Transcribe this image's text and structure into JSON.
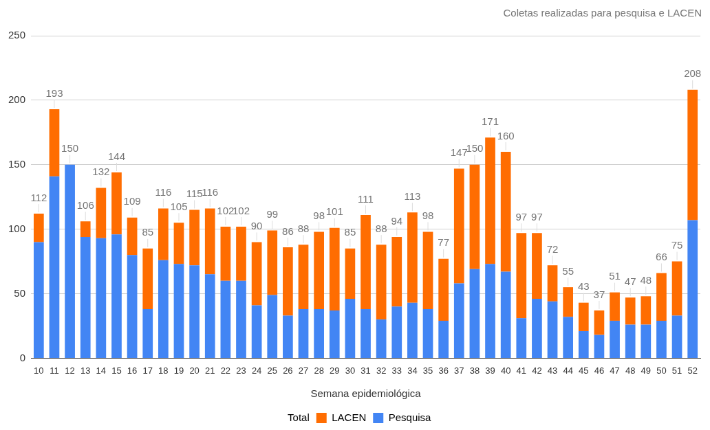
{
  "chart_data": {
    "type": "bar",
    "stacked": true,
    "title": "Coletas realizadas para pesquisa e LACEN",
    "xlabel": "Semana epidemiológica",
    "categories": [
      "10",
      "11",
      "12",
      "13",
      "14",
      "15",
      "16",
      "17",
      "18",
      "19",
      "20",
      "21",
      "22",
      "23",
      "24",
      "25",
      "26",
      "27",
      "28",
      "29",
      "30",
      "31",
      "32",
      "33",
      "34",
      "35",
      "36",
      "37",
      "38",
      "39",
      "40",
      "41",
      "42",
      "43",
      "44",
      "45",
      "46",
      "47",
      "48",
      "49",
      "50",
      "51",
      "52"
    ],
    "series": [
      {
        "name": "Pesquisa",
        "color": "#4285f4",
        "values": [
          90,
          141,
          150,
          94,
          93,
          96,
          80,
          38,
          76,
          73,
          72,
          65,
          60,
          60,
          41,
          49,
          33,
          38,
          38,
          37,
          46,
          38,
          30,
          40,
          43,
          38,
          29,
          58,
          69,
          73,
          67,
          31,
          46,
          44,
          32,
          21,
          18,
          29,
          26,
          26,
          29,
          33,
          107
        ]
      },
      {
        "name": "LACEN",
        "color": "#ff6d01",
        "values": [
          22,
          52,
          0,
          12,
          39,
          48,
          29,
          47,
          40,
          32,
          43,
          51,
          42,
          42,
          49,
          50,
          53,
          50,
          60,
          64,
          39,
          73,
          58,
          54,
          70,
          60,
          48,
          89,
          81,
          98,
          93,
          66,
          51,
          28,
          23,
          22,
          19,
          22,
          21,
          22,
          37,
          42,
          101
        ]
      }
    ],
    "totals": [
      "112",
      "193",
      "150",
      "106",
      "132",
      "144",
      "109",
      "85",
      "116",
      "105",
      "115",
      "116",
      "102",
      "102",
      "90",
      "99",
      "86",
      "88",
      "98",
      "101",
      "85",
      "111",
      "88",
      "94",
      "113",
      "98",
      "77",
      "147",
      "150",
      "171",
      "160",
      "97",
      "97",
      "72",
      "55",
      "43",
      "37",
      "51",
      "47",
      "48",
      "66",
      "75",
      "208"
    ],
    "legend_title": "Total",
    "ylim": [
      0,
      250
    ],
    "yticks": [
      0,
      50,
      100,
      150,
      200,
      250
    ],
    "grid": "y",
    "legend": "bottom"
  }
}
